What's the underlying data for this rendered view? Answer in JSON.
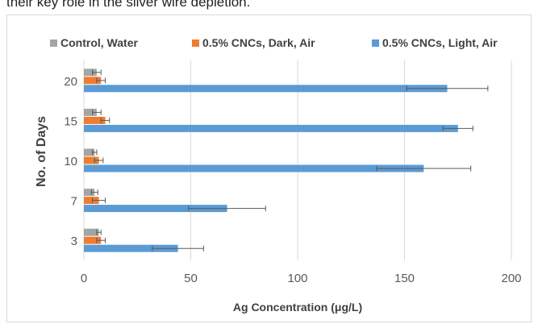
{
  "header_text": "their key role in the silver wire depletion.",
  "chart_data": {
    "type": "bar",
    "orientation": "horizontal",
    "categories": [
      "3",
      "7",
      "10",
      "15",
      "20"
    ],
    "series": [
      {
        "name": "Control, Water",
        "color": "#a5a5a5",
        "values": [
          7,
          5,
          5,
          6,
          6
        ],
        "errors": [
          1,
          1.5,
          1,
          2,
          2
        ]
      },
      {
        "name": "0.5% CNCs, Dark, Air",
        "color": "#ed7d31",
        "values": [
          8,
          7,
          7,
          10,
          8
        ],
        "errors": [
          2,
          3,
          2,
          2,
          2
        ]
      },
      {
        "name": "0.5% CNCs, Light, Air",
        "color": "#5b9bd5",
        "values": [
          44,
          67,
          159,
          175,
          170
        ],
        "errors": [
          12,
          18,
          22,
          7,
          19
        ]
      }
    ],
    "xlabel": "Ag Concentration (μg/L)",
    "ylabel": "No. of Days",
    "xlim": [
      0,
      200
    ],
    "xticks": [
      "0",
      "50",
      "100",
      "150",
      "200"
    ],
    "grid": true,
    "legend_position": "top"
  }
}
